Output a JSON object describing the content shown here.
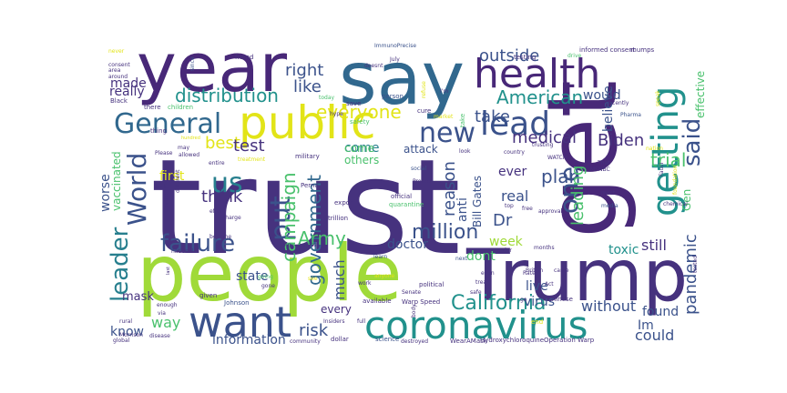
{
  "palette": {
    "indigo": "#46327e",
    "purple": "#482878",
    "blue": "#3b528b",
    "steel": "#31688e",
    "teal": "#277f8e",
    "cyan": "#21918c",
    "green": "#1fa187",
    "lime": "#4ac16d",
    "yellowgreen": "#a0da39",
    "yellow": "#e2e418",
    "lightgray": "#9aa8a8"
  },
  "words": [
    {
      "text": "trust",
      "color": "indigo"
    },
    {
      "text": "people",
      "color": "yellowgreen"
    },
    {
      "text": "year",
      "color": "purple"
    },
    {
      "text": "say",
      "color": "steel"
    },
    {
      "text": "get",
      "color": "purple"
    },
    {
      "text": "Trump",
      "color": "indigo"
    },
    {
      "text": "health",
      "color": "purple"
    },
    {
      "text": "public",
      "color": "yellow"
    },
    {
      "text": "coronavirus",
      "color": "cyan"
    },
    {
      "text": "want",
      "color": "blue"
    },
    {
      "text": "getting",
      "color": "cyan"
    },
    {
      "text": "General",
      "color": "steel"
    },
    {
      "text": "lead",
      "color": "blue"
    },
    {
      "text": "new",
      "color": "blue"
    },
    {
      "text": "leader",
      "color": "teal"
    },
    {
      "text": "failure",
      "color": "blue"
    },
    {
      "text": "World",
      "color": "blue"
    },
    {
      "text": "one",
      "color": "blue"
    },
    {
      "text": "said",
      "color": "blue"
    },
    {
      "text": "us",
      "color": "teal"
    },
    {
      "text": "put",
      "color": "blue"
    },
    {
      "text": "distribution",
      "color": "cyan"
    },
    {
      "text": "everyone",
      "color": "yellow"
    },
    {
      "text": "American",
      "color": "cyan"
    },
    {
      "text": "million",
      "color": "blue"
    },
    {
      "text": "pandemic",
      "color": "blue"
    },
    {
      "text": "plan",
      "color": "blue"
    },
    {
      "text": "government",
      "color": "steel"
    },
    {
      "text": "medical",
      "color": "indigo"
    },
    {
      "text": "campaign",
      "color": "lime"
    },
    {
      "text": "California",
      "color": "cyan"
    },
    {
      "text": "Army",
      "color": "lime"
    },
    {
      "text": "Biden",
      "color": "indigo"
    },
    {
      "text": "trial",
      "color": "lime"
    },
    {
      "text": "outside",
      "color": "blue"
    },
    {
      "text": "take",
      "color": "blue"
    },
    {
      "text": "right",
      "color": "blue"
    },
    {
      "text": "like",
      "color": "blue"
    },
    {
      "text": "best",
      "color": "yellow"
    },
    {
      "text": "think",
      "color": "indigo"
    },
    {
      "text": "test",
      "color": "indigo"
    },
    {
      "text": "information",
      "color": "blue"
    },
    {
      "text": "know",
      "color": "blue"
    },
    {
      "text": "way",
      "color": "lime"
    },
    {
      "text": "risk",
      "color": "blue"
    },
    {
      "text": "could",
      "color": "blue"
    },
    {
      "text": "Im",
      "color": "blue"
    },
    {
      "text": "without",
      "color": "blue"
    },
    {
      "text": "found",
      "color": "blue"
    },
    {
      "text": "still",
      "color": "indigo"
    },
    {
      "text": "toxic",
      "color": "cyan"
    },
    {
      "text": "dont",
      "color": "lime"
    },
    {
      "text": "week",
      "color": "yellowgreen"
    },
    {
      "text": "Dr",
      "color": "blue"
    },
    {
      "text": "doctor",
      "color": "blue"
    },
    {
      "text": "real",
      "color": "blue"
    },
    {
      "text": "ever",
      "color": "indigo"
    },
    {
      "text": "reason",
      "color": "blue"
    },
    {
      "text": "made",
      "color": "indigo"
    },
    {
      "text": "really",
      "color": "indigo"
    },
    {
      "text": "state",
      "color": "blue"
    },
    {
      "text": "come",
      "color": "teal"
    },
    {
      "text": "would",
      "color": "blue"
    },
    {
      "text": "believe",
      "color": "blue"
    },
    {
      "text": "leading",
      "color": "lime"
    },
    {
      "text": "Bill Gates",
      "color": "blue"
    },
    {
      "text": "anti",
      "color": "blue"
    },
    {
      "text": "live",
      "color": "blue"
    },
    {
      "text": "virus",
      "color": "blue"
    },
    {
      "text": "worse",
      "color": "blue"
    },
    {
      "text": "vaccinated",
      "color": "lime"
    },
    {
      "text": "mask",
      "color": "indigo"
    },
    {
      "text": "much",
      "color": "blue"
    },
    {
      "text": "every",
      "color": "indigo"
    },
    {
      "text": "others",
      "color": "lime"
    },
    {
      "text": "first",
      "color": "yellow"
    },
    {
      "text": "attack",
      "color": "blue"
    },
    {
      "text": "Gen",
      "color": "lime"
    },
    {
      "text": "effective",
      "color": "lime"
    },
    {
      "text": "come",
      "color": "lime"
    },
    {
      "text": "ImmunoPrecise",
      "color": "blue"
    },
    {
      "text": "informed consent",
      "color": "indigo"
    },
    {
      "text": "mumps",
      "color": "indigo"
    },
    {
      "text": "testing",
      "color": "indigo"
    },
    {
      "text": "doesnt",
      "color": "indigo"
    },
    {
      "text": "friend",
      "color": "indigo"
    },
    {
      "text": "consent",
      "color": "indigo"
    },
    {
      "text": "area",
      "color": "indigo"
    },
    {
      "text": "around",
      "color": "indigo"
    },
    {
      "text": "Black",
      "color": "indigo"
    },
    {
      "text": "never",
      "color": "yellow"
    },
    {
      "text": "since",
      "color": "blue"
    },
    {
      "text": "drive",
      "color": "lime"
    },
    {
      "text": "person",
      "color": "blue"
    },
    {
      "text": "refuse",
      "color": "yellow"
    },
    {
      "text": "today",
      "color": "lime"
    },
    {
      "text": "save",
      "color": "indigo"
    },
    {
      "text": "market",
      "color": "yellow"
    },
    {
      "text": "cure",
      "color": "indigo"
    },
    {
      "text": "recently",
      "color": "indigo"
    },
    {
      "text": "Pharma",
      "color": "blue"
    },
    {
      "text": "speak",
      "color": "yellow"
    },
    {
      "text": "children",
      "color": "lime"
    },
    {
      "text": "there",
      "color": "indigo"
    },
    {
      "text": "safety",
      "color": "lime"
    },
    {
      "text": "hype",
      "color": "indigo"
    },
    {
      "text": "thing",
      "color": "indigo"
    },
    {
      "text": "may",
      "color": "indigo"
    },
    {
      "text": "allowed",
      "color": "indigo"
    },
    {
      "text": "Please",
      "color": "indigo"
    },
    {
      "text": "entire",
      "color": "indigo"
    },
    {
      "text": "treatment",
      "color": "yellow"
    },
    {
      "text": "military",
      "color": "indigo"
    },
    {
      "text": "look",
      "color": "indigo"
    },
    {
      "text": "country",
      "color": "indigo"
    },
    {
      "text": "trusting",
      "color": "indigo"
    },
    {
      "text": "WATCH",
      "color": "indigo"
    },
    {
      "text": "That",
      "color": "indigo"
    },
    {
      "text": "MSNBC",
      "color": "indigo"
    },
    {
      "text": "social",
      "color": "blue"
    },
    {
      "text": "Protect",
      "color": "indigo"
    },
    {
      "text": "official",
      "color": "indigo"
    },
    {
      "text": "quarantine",
      "color": "lime"
    },
    {
      "text": "top",
      "color": "indigo"
    },
    {
      "text": "free",
      "color": "indigo"
    },
    {
      "text": "approval",
      "color": "indigo"
    },
    {
      "text": "must",
      "color": "indigo"
    },
    {
      "text": "media",
      "color": "blue"
    },
    {
      "text": "chemical",
      "color": "indigo"
    },
    {
      "text": "make",
      "color": "indigo"
    },
    {
      "text": "effort",
      "color": "indigo"
    },
    {
      "text": "charge",
      "color": "indigo"
    },
    {
      "text": "export",
      "color": "indigo"
    },
    {
      "text": "trillion",
      "color": "indigo"
    },
    {
      "text": "become",
      "color": "indigo"
    },
    {
      "text": "Perna",
      "color": "indigo"
    },
    {
      "text": "national",
      "color": "indigo"
    },
    {
      "text": "big",
      "color": "indigo"
    },
    {
      "text": "access",
      "color": "indigo"
    },
    {
      "text": "order",
      "color": "indigo"
    },
    {
      "text": "months",
      "color": "indigo"
    },
    {
      "text": "British",
      "color": "indigo"
    },
    {
      "text": "even",
      "color": "indigo"
    },
    {
      "text": "came",
      "color": "indigo"
    },
    {
      "text": "learn",
      "color": "blue"
    },
    {
      "text": "next",
      "color": "blue"
    },
    {
      "text": "anyone",
      "color": "yellow"
    },
    {
      "text": "treat",
      "color": "indigo"
    },
    {
      "text": "safe",
      "color": "indigo"
    },
    {
      "text": "go",
      "color": "indigo"
    },
    {
      "text": "Chinese",
      "color": "indigo"
    },
    {
      "text": "work",
      "color": "indigo"
    },
    {
      "text": "political",
      "color": "indigo"
    },
    {
      "text": "Senate",
      "color": "indigo"
    },
    {
      "text": "available",
      "color": "indigo"
    },
    {
      "text": "Warp Speed",
      "color": "indigo"
    },
    {
      "text": "going",
      "color": "lime"
    },
    {
      "text": "gone",
      "color": "indigo"
    },
    {
      "text": "given",
      "color": "indigo"
    },
    {
      "text": "Johnson",
      "color": "blue"
    },
    {
      "text": "enough",
      "color": "indigo"
    },
    {
      "text": "via",
      "color": "indigo"
    },
    {
      "text": "rural",
      "color": "indigo"
    },
    {
      "text": "Morrison",
      "color": "indigo"
    },
    {
      "text": "disease",
      "color": "indigo"
    },
    {
      "text": "global",
      "color": "indigo"
    },
    {
      "text": "community",
      "color": "indigo"
    },
    {
      "text": "dollar",
      "color": "indigo"
    },
    {
      "text": "science",
      "color": "blue"
    },
    {
      "text": "destroyed",
      "color": "indigo"
    },
    {
      "text": "WearAMask",
      "color": "indigo"
    },
    {
      "text": "HydroxychloroquineOperation Warp",
      "color": "indigo"
    },
    {
      "text": "end",
      "color": "yellow"
    },
    {
      "text": "Insiders",
      "color": "indigo"
    },
    {
      "text": "full",
      "color": "indigo"
    },
    {
      "text": "body",
      "color": "indigo"
    },
    {
      "text": "Rates",
      "color": "indigo"
    },
    {
      "text": "Act",
      "color": "indigo"
    },
    {
      "text": "tested",
      "color": "indigo"
    },
    {
      "text": "foundation",
      "color": "yellow"
    },
    {
      "text": "Fauci",
      "color": "indigo"
    },
    {
      "text": "nation",
      "color": "yellow"
    },
    {
      "text": "take",
      "color": "lime"
    },
    {
      "text": "different",
      "color": "indigo"
    },
    {
      "text": "treated",
      "color": "indigo"
    },
    {
      "text": "I'm",
      "color": "indigo"
    },
    {
      "text": "July",
      "color": "indigo"
    },
    {
      "text": "hundred",
      "color": "yellow"
    },
    {
      "text": "last",
      "color": "indigo"
    },
    {
      "text": "see",
      "color": "yellow"
    }
  ]
}
